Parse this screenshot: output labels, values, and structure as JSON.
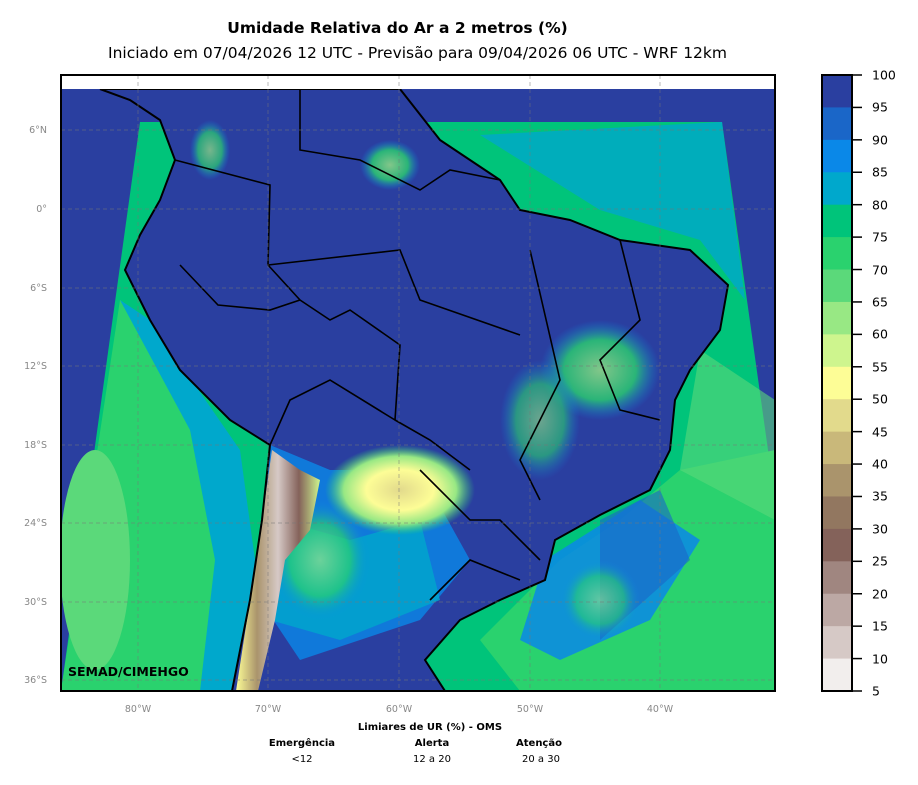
{
  "header": {
    "title": "Umidade Relativa do Ar a 2 metros (%)",
    "subtitle": "Iniciado em 07/04/2026 12 UTC - Previsão para 09/04/2026 06 UTC - WRF 12km"
  },
  "map": {
    "credit": "SEMAD/CIMEHGO",
    "lat_labels": [
      "6°N",
      "0°",
      "6°S",
      "12°S",
      "18°S",
      "24°S",
      "30°S",
      "36°S"
    ],
    "lon_labels": [
      "80°W",
      "70°W",
      "60°W",
      "50°W",
      "40°W"
    ]
  },
  "colorbar": {
    "ticks": [
      "100",
      "95",
      "90",
      "85",
      "80",
      "75",
      "70",
      "65",
      "60",
      "55",
      "50",
      "45",
      "40",
      "35",
      "30",
      "25",
      "20",
      "15",
      "10",
      "5"
    ],
    "colors": [
      "#2a3fa0",
      "#1a66c8",
      "#0a88e8",
      "#00a8cc",
      "#00c47a",
      "#2ad26e",
      "#5bd97a",
      "#98e884",
      "#cef58e",
      "#fdfd96",
      "#e2da8c",
      "#c9b87a",
      "#aa946c",
      "#927760",
      "#84625a",
      "#a08680",
      "#bca8a4",
      "#d6c9c6",
      "#f2eeed"
    ]
  },
  "legend": {
    "title": "Limiares de UR (%) - OMS",
    "items": [
      {
        "label": "Emergência",
        "range": "<12"
      },
      {
        "label": "Alerta",
        "range": "12 a 20"
      },
      {
        "label": "Atenção",
        "range": "20 a 30"
      }
    ]
  }
}
